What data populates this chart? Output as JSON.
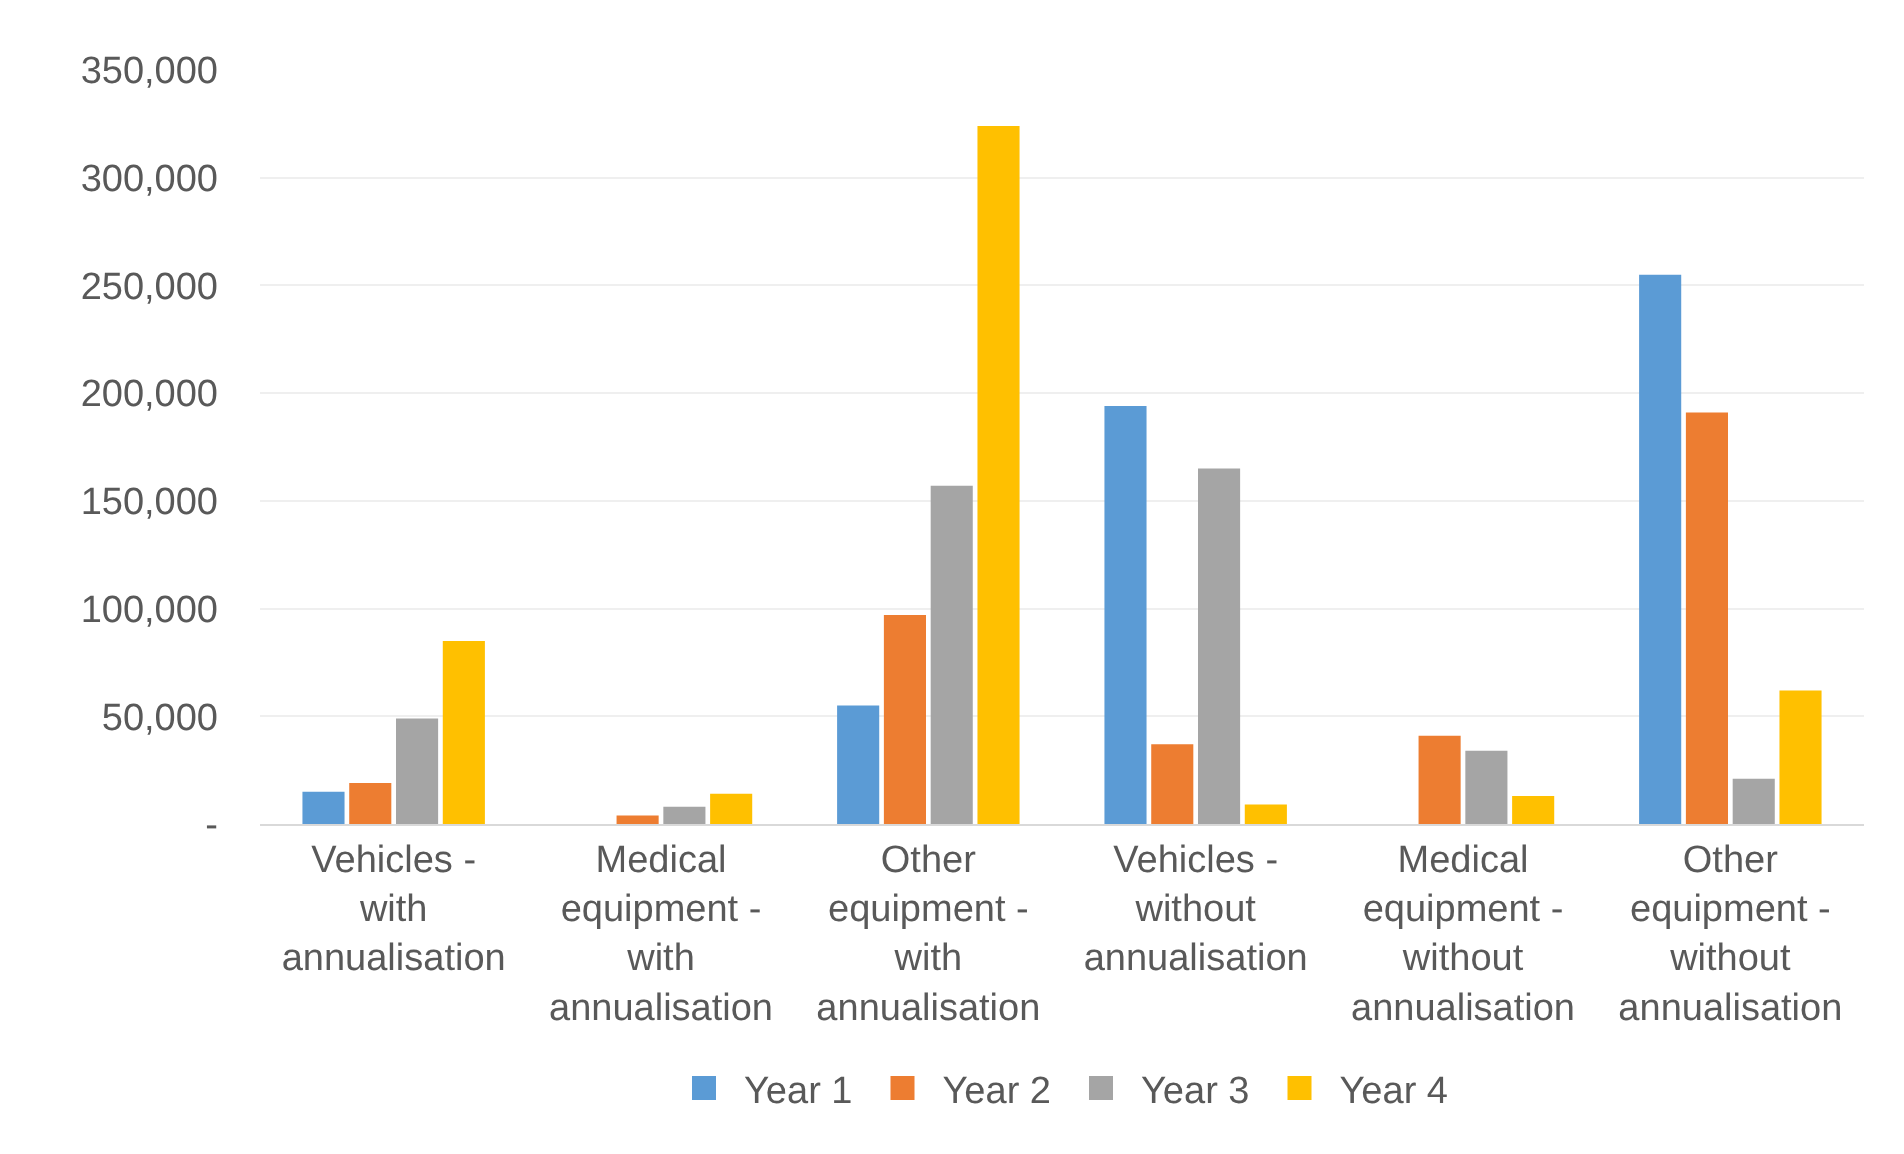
{
  "chart_data": {
    "type": "bar",
    "categories": [
      "Vehicles - with annualisation",
      "Medical equipment - with annualisation",
      "Other equipment - with annualisation",
      "Vehicles - without annualisation",
      "Medical equipment - without annualisation",
      "Other equipment - without annualisation"
    ],
    "series": [
      {
        "name": "Year 1",
        "color": "#5b9bd5",
        "values": [
          15000,
          0,
          55000,
          194000,
          0,
          255000
        ]
      },
      {
        "name": "Year 2",
        "color": "#ed7d31",
        "values": [
          19000,
          4000,
          97000,
          37000,
          41000,
          191000
        ]
      },
      {
        "name": "Year 3",
        "color": "#a5a5a5",
        "values": [
          49000,
          8000,
          157000,
          165000,
          34000,
          21000
        ]
      },
      {
        "name": "Year 4",
        "color": "#ffc000",
        "values": [
          85000,
          14000,
          324000,
          9000,
          13000,
          62000
        ]
      }
    ],
    "ylim": [
      0,
      350000
    ],
    "yticks": [
      {
        "value": 0,
        "label": "-"
      },
      {
        "value": 50000,
        "label": "50,000"
      },
      {
        "value": 100000,
        "label": "100,000"
      },
      {
        "value": 150000,
        "label": "150,000"
      },
      {
        "value": 200000,
        "label": "200,000"
      },
      {
        "value": 250000,
        "label": "250,000"
      },
      {
        "value": 300000,
        "label": "300,000"
      },
      {
        "value": 350000,
        "label": "350,000"
      }
    ],
    "grid": "y",
    "legend": "bottom"
  }
}
